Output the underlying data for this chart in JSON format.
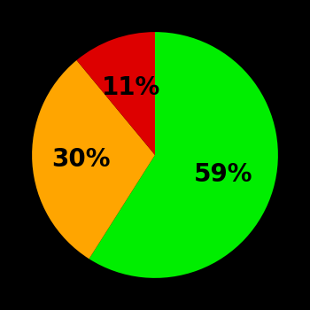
{
  "slices": [
    59,
    30,
    11
  ],
  "colors": [
    "#00ee00",
    "#ffa500",
    "#dd0000"
  ],
  "labels": [
    "59%",
    "30%",
    "11%"
  ],
  "startangle": 90,
  "background_color": "#000000",
  "text_color": "#000000",
  "font_size": 20,
  "font_weight": "bold",
  "label_radii": [
    0.58,
    0.6,
    0.58
  ],
  "counterclock": false
}
